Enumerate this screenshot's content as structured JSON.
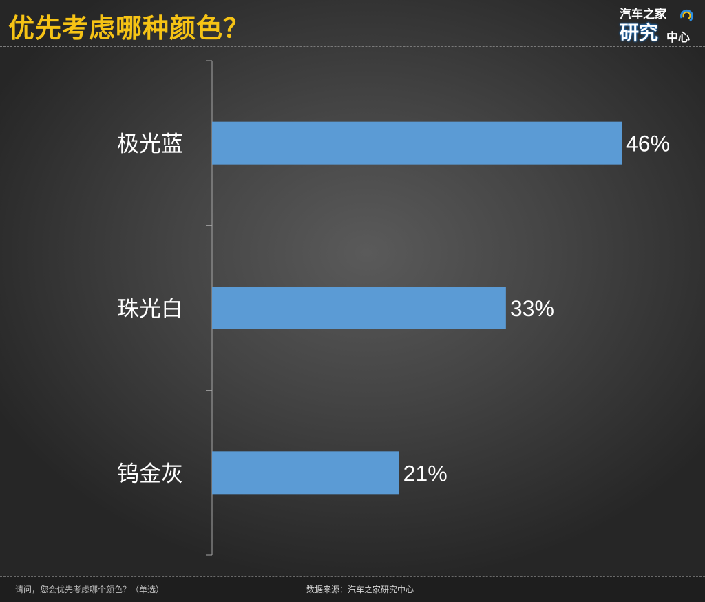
{
  "header": {
    "title": "优先考虑哪种颜色？",
    "logo": {
      "line1": "汽车之家",
      "line2": "研究",
      "line3": "中心"
    }
  },
  "colors": {
    "title": "#f6c315",
    "bar": "#5b9bd5",
    "text": "#ffffff",
    "axis": "#a6a6a6"
  },
  "chart_data": {
    "type": "bar",
    "orientation": "horizontal",
    "categories": [
      "极光蓝",
      "珠光白",
      "钨金灰"
    ],
    "values": [
      46,
      33,
      21
    ],
    "value_labels": [
      "46%",
      "33%",
      "21%"
    ],
    "unit": "%",
    "xlim": [
      0,
      46
    ],
    "grid": false,
    "legend": "none"
  },
  "footer": {
    "note": "请问，您会优先考虑哪个颜色？（单选）",
    "source": "数据来源：汽车之家研究中心"
  }
}
